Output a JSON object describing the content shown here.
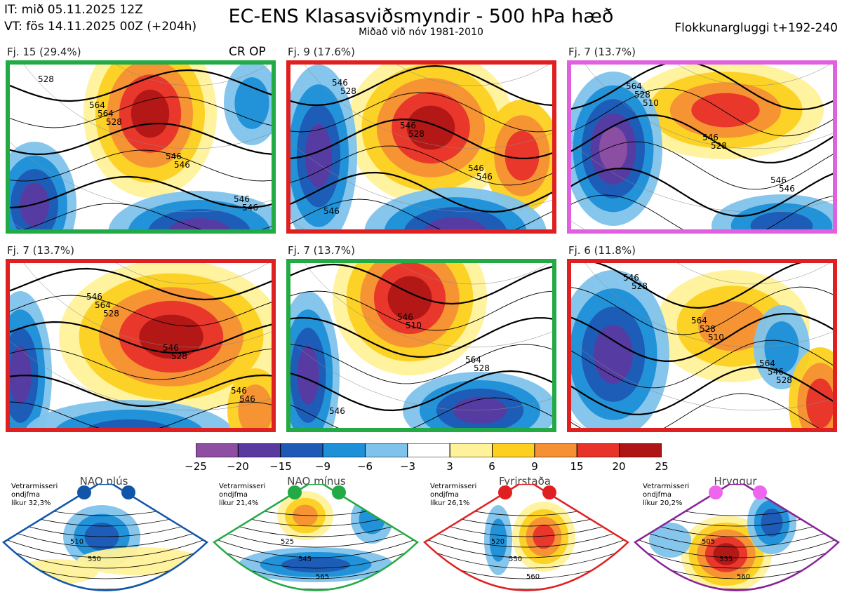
{
  "header": {
    "init_time": "IT: mið 05.11.2025 12Z",
    "valid_time": "VT: fös 14.11.2025 00Z  (+204h)",
    "title": "EC-ENS Klasasviðsmyndir - 500 hPa hæð",
    "subtitle": "Miðað við nóv 1981-2010",
    "window": "Flokkunargluggi t+192-240"
  },
  "cluster_panels": [
    {
      "label": "Fj. 15 (29.4%)",
      "frame_color": "#22aa44",
      "extra": "CR OP",
      "contours": [
        "528",
        "528",
        "546",
        "546",
        "564",
        "546",
        "546",
        "564"
      ]
    },
    {
      "label": "Fj. 9 (17.6%)",
      "frame_color": "#e02020",
      "contours": [
        "528",
        "528",
        "546",
        "546",
        "546",
        "546",
        "546"
      ]
    },
    {
      "label": "Fj. 7 (13.7%)",
      "frame_color": "#e060e0",
      "contours": [
        "510",
        "528",
        "546",
        "528",
        "546",
        "546",
        "564"
      ]
    },
    {
      "label": "Fj. 7 (13.7%)",
      "frame_color": "#e02020",
      "contours": [
        "528",
        "528",
        "546",
        "564",
        "546",
        "546",
        "546"
      ]
    },
    {
      "label": "Fj. 7 (13.7%)",
      "frame_color": "#22aa44",
      "contours": [
        "510",
        "528",
        "546",
        "546",
        "564"
      ]
    },
    {
      "label": "Fj. 6 (11.8%)",
      "frame_color": "#e02020",
      "contours": [
        "510",
        "528",
        "528",
        "528",
        "546",
        "546",
        "564",
        "564"
      ]
    }
  ],
  "colorbar": {
    "ticks": [
      "−25",
      "−20",
      "−15",
      "−9",
      "−6",
      "−3",
      "3",
      "6",
      "9",
      "15",
      "20",
      "25"
    ],
    "colors": [
      "#8e4fa3",
      "#5a3aa0",
      "#1d5ab5",
      "#1e90d8",
      "#7fc3ec",
      "#ffffff",
      "#fff29a",
      "#fdd020",
      "#f59035",
      "#e8332b",
      "#b01515"
    ]
  },
  "regimes": [
    {
      "name": "NAO plús",
      "color": "#1155aa",
      "note": [
        "Vetrarmisseri",
        "ondjfma",
        "líkur 32,3%"
      ],
      "contours": [
        "510",
        "550"
      ]
    },
    {
      "name": "NAO mínus",
      "color": "#22aa44",
      "note": [
        "Vetrarmisseri",
        "ondjfma",
        "líkur 21,4%"
      ],
      "contours": [
        "525",
        "545",
        "565"
      ]
    },
    {
      "name": "Fyrirstaða",
      "color": "#e02020",
      "note": [
        "Vetrarmisseri",
        "ondjfma",
        "líkur 26,1%"
      ],
      "contours": [
        "520",
        "550",
        "560"
      ]
    },
    {
      "name": "Hryggur",
      "color": "#882299",
      "dot_color": "#ee66ee",
      "note": [
        "Vetrarmisseri",
        "ondjfma",
        "líkur 20,2%"
      ],
      "contours": [
        "505",
        "535",
        "560"
      ]
    }
  ]
}
